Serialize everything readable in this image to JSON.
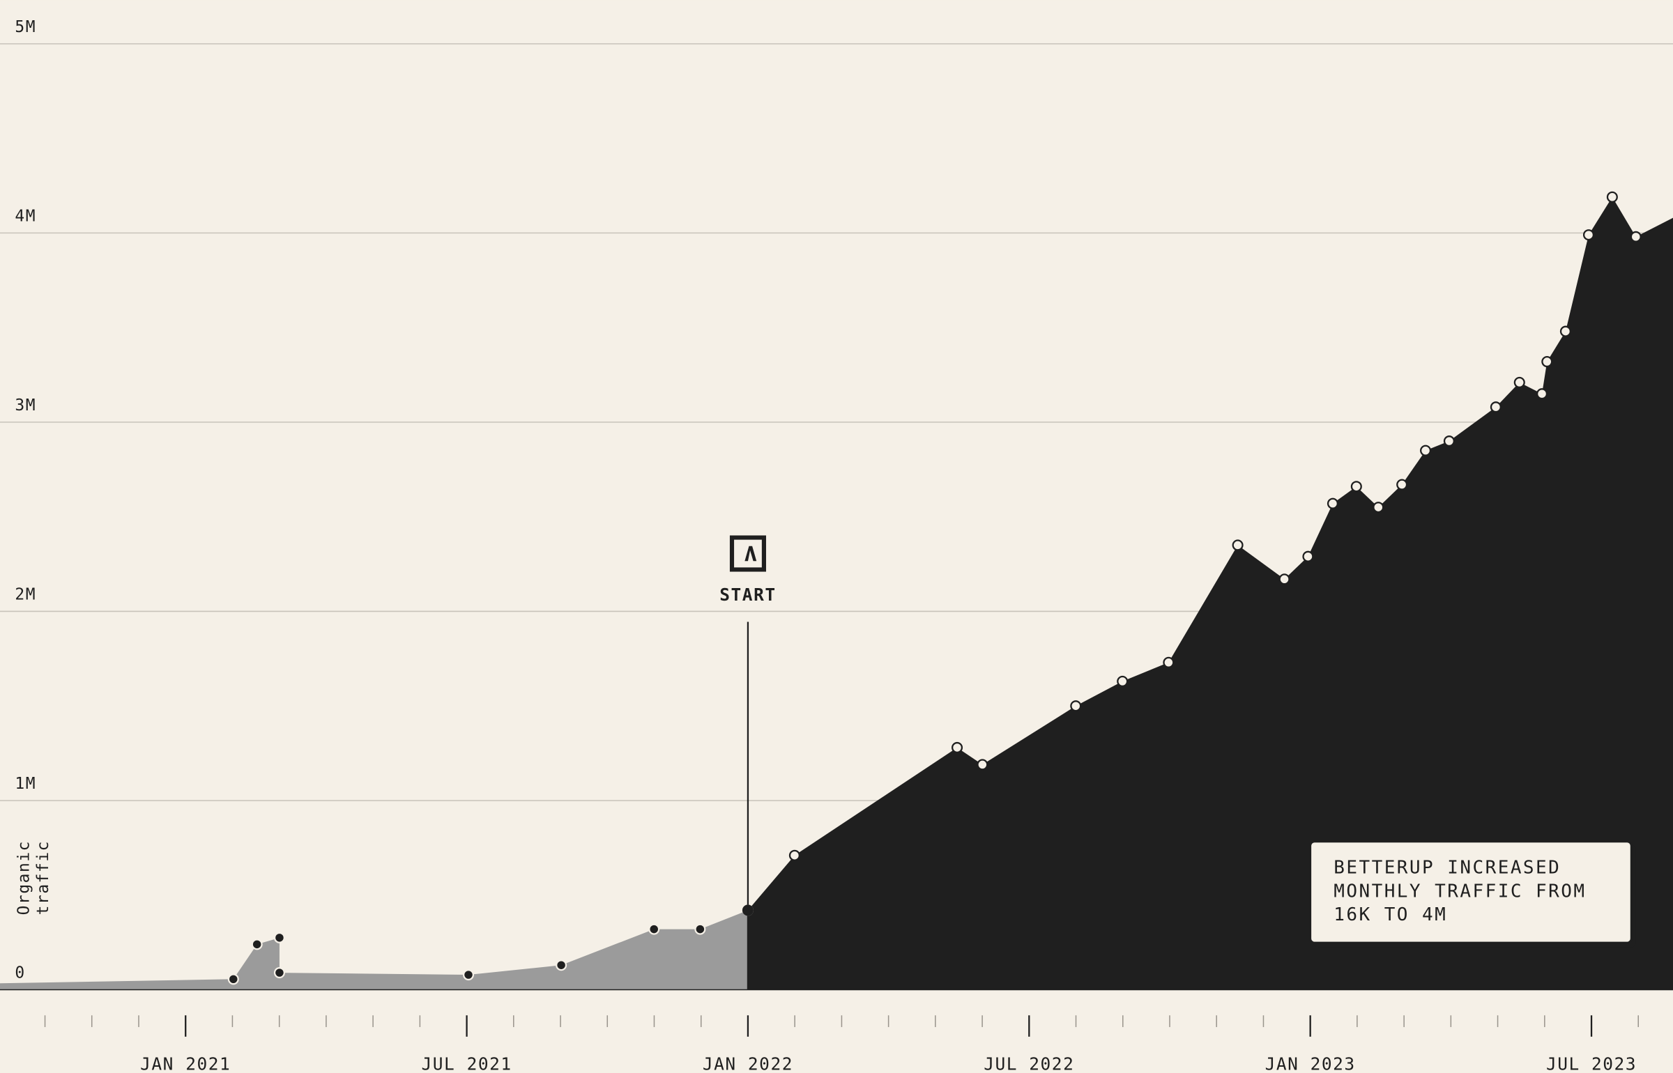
{
  "chart_data": {
    "type": "area",
    "y_label": "Organic traffic",
    "xlim": [
      2020.67,
      2023.645
    ],
    "xticks": [
      {
        "value": 2021,
        "label": "JAN 2021"
      },
      {
        "value": 2021.5,
        "label": "JUL 2021"
      },
      {
        "value": 2022,
        "label": "JAN 2022"
      },
      {
        "value": 2022.5,
        "label": "JUL 2022"
      },
      {
        "value": 2023,
        "label": "JAN 2023"
      },
      {
        "value": 2023.5,
        "label": "JUL 2023"
      }
    ],
    "xminorticks": [
      2020.75,
      2020.8333,
      2020.9167,
      2021.0833,
      2021.1667,
      2021.25,
      2021.3333,
      2021.4167,
      2021.5833,
      2021.6667,
      2021.75,
      2021.8333,
      2021.9167,
      2022.0833,
      2022.1667,
      2022.25,
      2022.3333,
      2022.4167,
      2022.5833,
      2022.6667,
      2022.75,
      2022.8333,
      2022.9167,
      2023.0833,
      2023.1667,
      2023.25,
      2023.3333,
      2023.4167,
      2023.5833
    ],
    "ylim": [
      0,
      5000000
    ],
    "yticks": [
      {
        "value": 0,
        "label": "0"
      },
      {
        "value": 1000000,
        "label": "1M"
      },
      {
        "value": 2000000,
        "label": "2M"
      },
      {
        "value": 3000000,
        "label": "3M"
      },
      {
        "value": 4000000,
        "label": "4M"
      },
      {
        "value": 5000000,
        "label": "5M"
      }
    ],
    "grid": true,
    "series": [
      {
        "color": "#9b9b9b",
        "marker_color": "#1f1f1f",
        "marker_stroke": "#f5f0e7",
        "x": [
          2020.67,
          2021.085,
          2021.127,
          2021.167,
          2021.167,
          2021.503,
          2021.668,
          2021.833,
          2021.915,
          2022.0
        ],
        "values": [
          34000,
          56000,
          240000,
          275000,
          90000,
          79000,
          130000,
          320000,
          320000,
          420000
        ]
      },
      {
        "color": "#1f1f1f",
        "marker_color": "#f5f0e7",
        "marker_stroke": "#1f1f1f",
        "x": [
          2022.0,
          2022.083,
          2022.372,
          2022.417,
          2022.583,
          2022.666,
          2022.748,
          2022.871,
          2022.954,
          2022.996,
          2023.04,
          2023.082,
          2023.121,
          2023.163,
          2023.205,
          2023.247,
          2023.33,
          2023.372,
          2023.412,
          2023.421,
          2023.454,
          2023.495,
          2023.537,
          2023.579,
          2023.645
        ],
        "values": [
          420000,
          710000,
          1280000,
          1190000,
          1500000,
          1630000,
          1730000,
          2350000,
          2170000,
          2290000,
          2570000,
          2660000,
          2550000,
          2670000,
          2850000,
          2900000,
          3080000,
          3210000,
          3150000,
          3320000,
          3480000,
          3990000,
          4190000,
          3980000,
          4080000
        ]
      }
    ],
    "annotation": {
      "label": "START",
      "x": 2022.0
    },
    "callout": [
      "BETTERUP INCREASED",
      "MONTHLY TRAFFIC FROM",
      "16K TO 4M"
    ]
  }
}
